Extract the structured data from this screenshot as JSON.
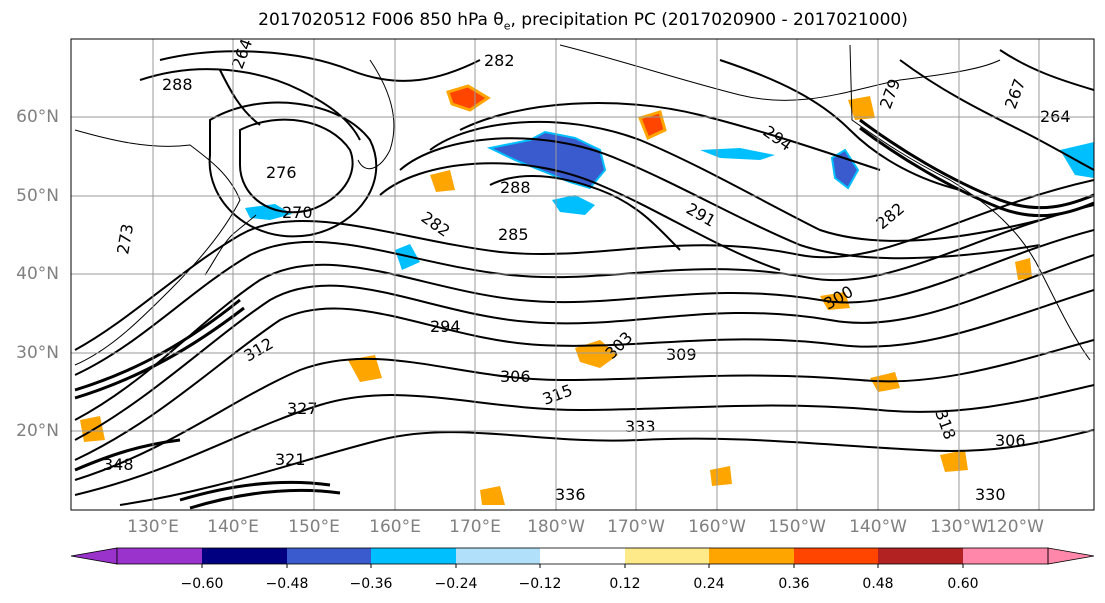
{
  "title": {
    "prefix": "2017020512 F006 850 hPa θ",
    "subscript": "e",
    "suffix": ", precipitation PC (2017020900 - 2017021000)"
  },
  "map": {
    "lat_labels": [
      "60°N",
      "50°N",
      "40°N",
      "30°N",
      "20°N"
    ],
    "lon_labels": [
      "130°E",
      "140°E",
      "150°E",
      "160°E",
      "170°E",
      "180°W",
      "170°W",
      "160°W",
      "150°W",
      "140°W",
      "130°W",
      "120°W"
    ],
    "contour_labels": [
      "288",
      "282",
      "264",
      "279",
      "267",
      "294",
      "276",
      "270",
      "288",
      "282",
      "285",
      "294",
      "291",
      "282",
      "264",
      "300",
      "309",
      "306",
      "303",
      "312",
      "318",
      "306",
      "336",
      "330",
      "315",
      "327",
      "348",
      "333",
      "321",
      "273"
    ]
  },
  "colorbar": {
    "ticks": [
      "−0.60",
      "−0.48",
      "−0.36",
      "−0.24",
      "−0.12",
      "0.12",
      "0.24",
      "0.36",
      "0.48",
      "0.60"
    ],
    "colors": [
      "#9933cc",
      "#000080",
      "#3a5bcd",
      "#00bfff",
      "#b0e0fa",
      "#ffffff",
      "#ffea8a",
      "#ffa500",
      "#ff4500",
      "#b22222",
      "#ff88aa",
      "#ff88aa"
    ]
  }
}
